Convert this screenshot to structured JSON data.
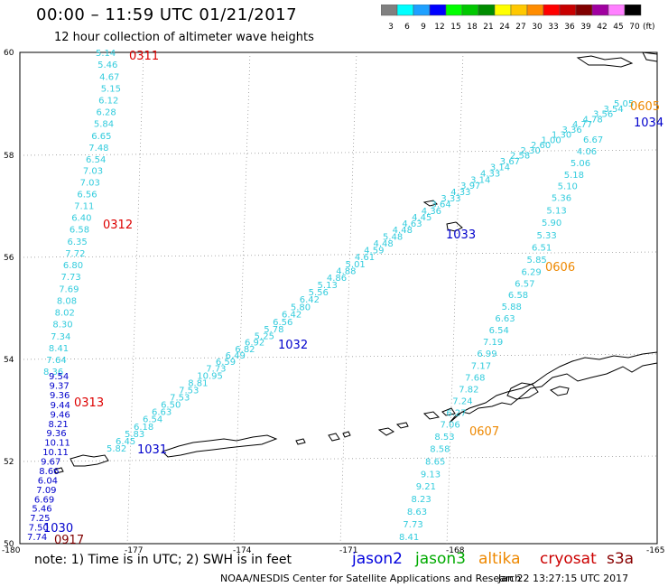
{
  "header": {
    "title": "00:00 – 11:59 UTC 01/21/2017",
    "subtitle": "12 hour collection of altimeter wave heights"
  },
  "legend": {
    "colorbar": {
      "unit": "(ft)",
      "ticks": [
        "3",
        "6",
        "9",
        "12",
        "15",
        "18",
        "21",
        "24",
        "27",
        "30",
        "33",
        "36",
        "39",
        "42",
        "45",
        "70"
      ],
      "colors": [
        "#808080",
        "#00ffff",
        "#1ea0ff",
        "#0000ff",
        "#00ff00",
        "#00c800",
        "#008c00",
        "#ffff00",
        "#ffc800",
        "#ff8c00",
        "#ff0000",
        "#c80000",
        "#800000",
        "#a000a0",
        "#ff80ff",
        "#000000"
      ]
    }
  },
  "map": {
    "lat_labels": [
      "60",
      "58",
      "56",
      "54",
      "52",
      "50"
    ],
    "lon_labels": [
      "-180",
      "-177",
      "-174",
      "-171",
      "-168",
      "-165"
    ],
    "passes": [
      {
        "id": "0311",
        "label_color": "#dd0000",
        "color": "#33ccdd",
        "labels": [
          "5.14",
          "5.46",
          "4.67",
          "5.15",
          "6.12",
          "6.28",
          "5.84",
          "6.65",
          "7.48",
          "6.54",
          "7.03",
          "7.03",
          "6.56",
          "7.11",
          "6.40",
          "6.58",
          "6.35",
          "7.72",
          "6.80",
          "7.73",
          "7.69",
          "8.08",
          "8.02",
          "8.30",
          "7.34",
          "8.41",
          "7.64",
          "8.36"
        ]
      },
      {
        "id": "0312",
        "label_color": "#dd0000"
      },
      {
        "id": "0313",
        "label_color": "#dd0000",
        "color": "#0000cc",
        "labels": [
          "9.54",
          "9.37",
          "9.36",
          "9.44",
          "9.46",
          "8.21",
          "9.36",
          "10.11",
          "10.11",
          "9.67",
          "8.66",
          "6.04",
          "7.09",
          "6.69",
          "5.46",
          "7.25",
          "7.50",
          "7.74"
        ]
      },
      {
        "id": "1030",
        "label_color": "#0000cc"
      },
      {
        "id": "0917",
        "label_color": "#800000"
      },
      {
        "id": "1031",
        "label_color": "#0000cc",
        "color": "#33ccdd",
        "labels": [
          "5.82",
          "6.45",
          "5.83",
          "6.18",
          "6.54",
          "6.63",
          "6.50",
          "7.53",
          "7.53",
          "8.81",
          "10.95",
          "7.73",
          "6.59",
          "6.49",
          "6.82",
          "6.92",
          "5.25",
          "5.78",
          "6.56",
          "6.42",
          "5.80",
          "6.42",
          "5.56",
          "5.13",
          "4.86",
          "4.88",
          "5.01",
          "4.61",
          "4.59",
          "4.48",
          "5.48",
          "4.48",
          "4.63",
          "4.45",
          "4.36",
          "3.64",
          "3.33",
          "4.33",
          "3.97",
          "3.14",
          "4.33",
          "3.14",
          "3.67",
          "2.58",
          "2.30",
          "2.60",
          "1.00",
          "1.30",
          "3.36",
          "4.77",
          "4.78",
          "3.56",
          "3.54",
          "5.05"
        ]
      },
      {
        "id": "1032",
        "label_color": "#0000cc"
      },
      {
        "id": "1033",
        "label_color": "#0000cc"
      },
      {
        "id": "1034",
        "label_color": "#0000cc"
      },
      {
        "id": "0605",
        "label_color": "#ee8800"
      },
      {
        "id": "0606",
        "label_color": "#ee8800",
        "color": "#33ccdd",
        "labels": [
          "6.67",
          "4.06",
          "5.06",
          "5.18",
          "5.10",
          "5.36",
          "5.13",
          "5.90",
          "5.33",
          "6.51",
          "5.85",
          "6.29",
          "6.57",
          "6.58",
          "5.88",
          "6.63",
          "6.54",
          "7.19",
          "6.99",
          "7.17",
          "7.68",
          "7.82",
          "7.24",
          "6.27",
          "7.06",
          "8.53",
          "8.58",
          "8.65",
          "9.13",
          "9.21",
          "8.23",
          "8.63",
          "7.73",
          "8.41"
        ]
      },
      {
        "id": "0607",
        "label_color": "#ee8800"
      }
    ]
  },
  "footer": {
    "note": "note:  1) Time is in UTC; 2) SWH is in feet",
    "satellites": [
      {
        "name": "jason2",
        "color": "#0000dd"
      },
      {
        "name": "jason3",
        "color": "#00aa00"
      },
      {
        "name": "altika",
        "color": "#ee8800"
      },
      {
        "name": "cryosat",
        "color": "#cc0000"
      },
      {
        "name": "s3a",
        "color": "#880000"
      }
    ],
    "credit": "NOAA/NESDIS Center for Satellite Applications and Research",
    "timestamp": "Jan 22 13:27:15 UTC 2017"
  }
}
